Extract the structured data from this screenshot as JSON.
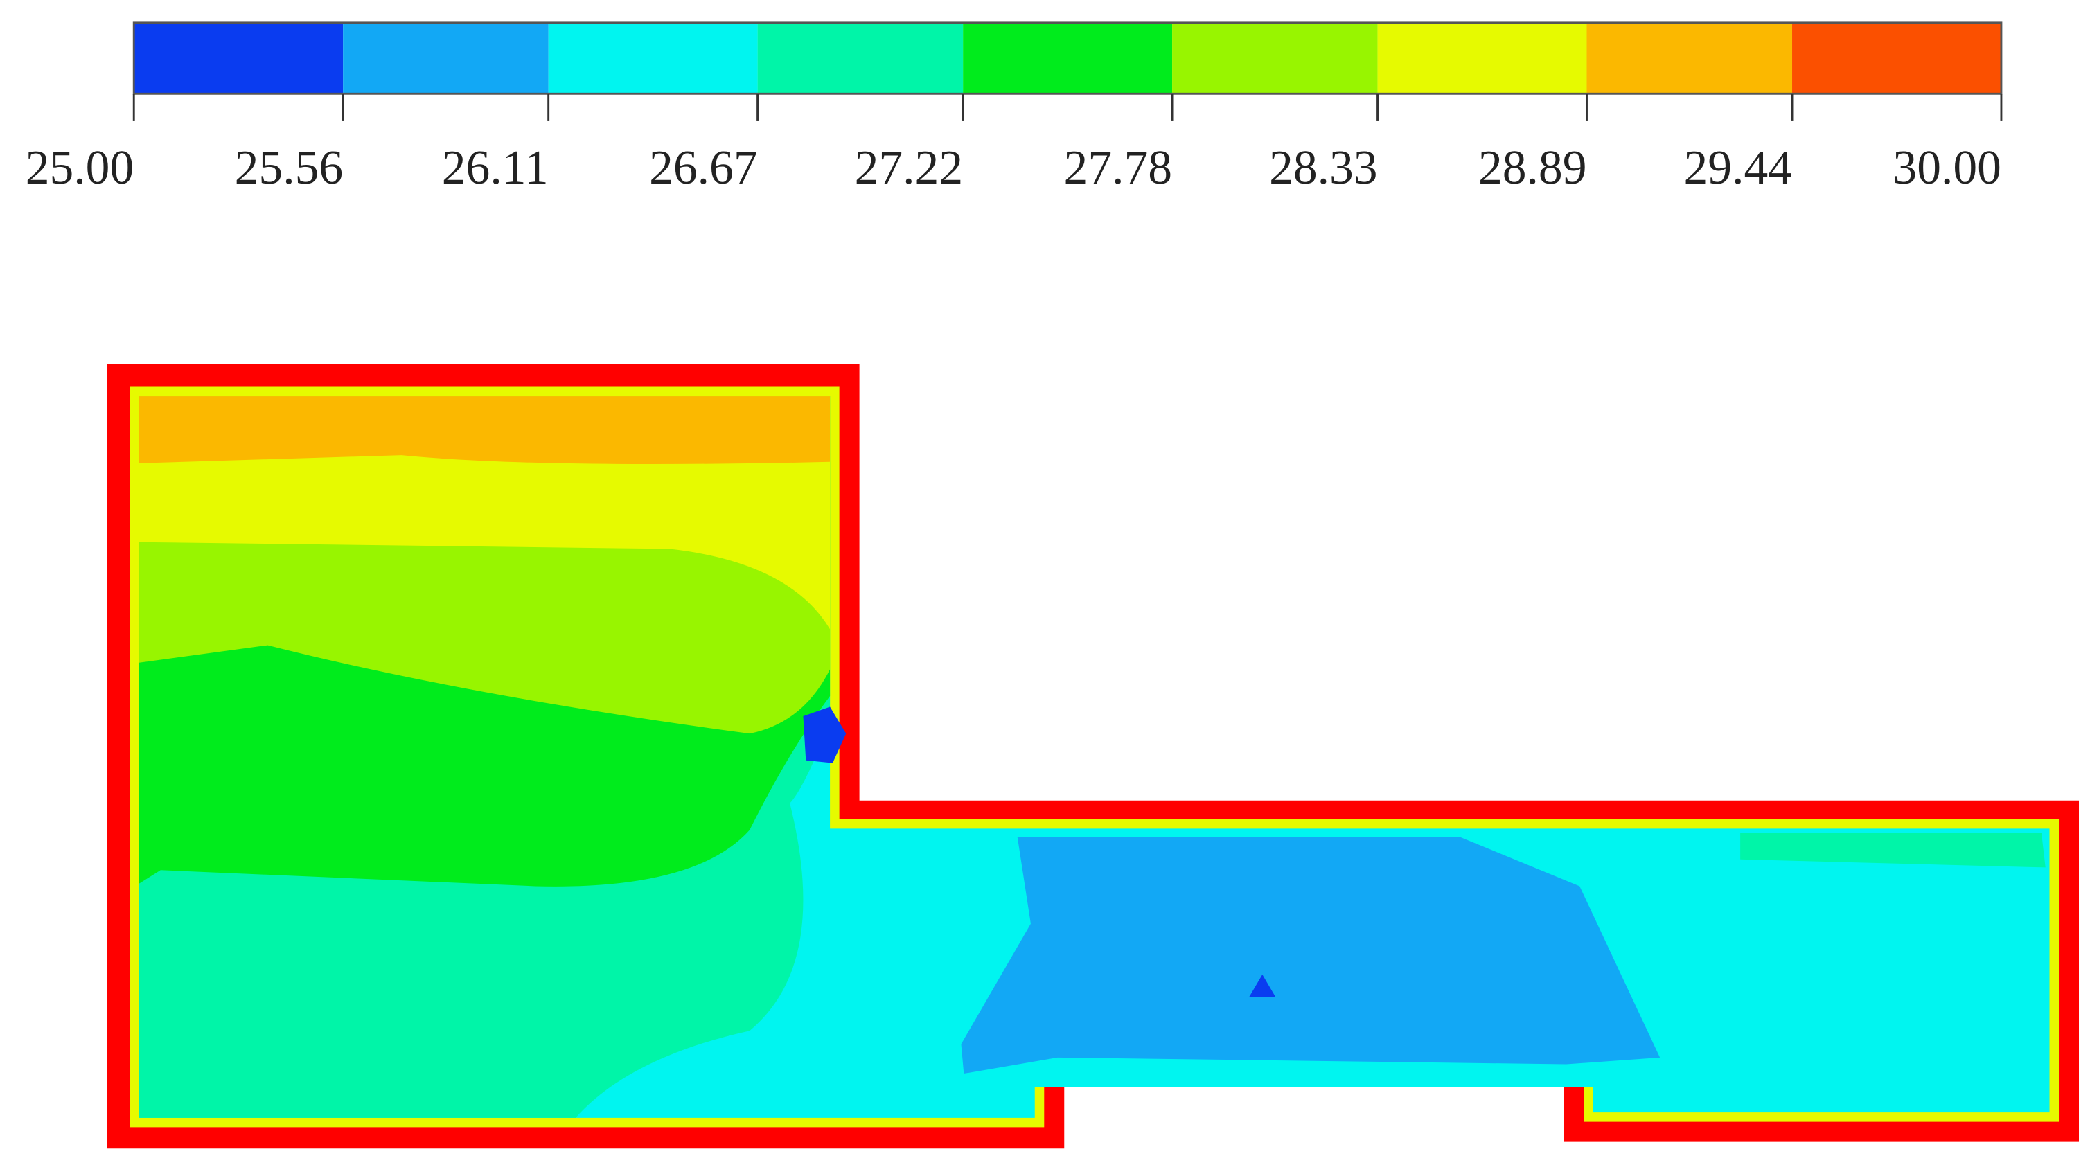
{
  "chart_data": {
    "type": "contour",
    "colors": [
      "#0a3cf0",
      "#12a8f5",
      "#00f5f0",
      "#00f5a8",
      "#00ec1c",
      "#98f500",
      "#e6fa00",
      "#fbb800",
      "#fb5000"
    ],
    "clim": [
      25,
      30
    ],
    "ticks": [
      {
        "value": 25,
        "label": "25.00"
      },
      {
        "value": 25.56,
        "label": "25.56"
      },
      {
        "value": 26.11,
        "label": "26.11"
      },
      {
        "value": 26.67,
        "label": "26.67"
      },
      {
        "value": 27.22,
        "label": "27.22"
      },
      {
        "value": 27.78,
        "label": "27.78"
      },
      {
        "value": 28.33,
        "label": "28.33"
      },
      {
        "value": 28.89,
        "label": "28.89"
      },
      {
        "value": 29.44,
        "label": "29.44"
      },
      {
        "value": 30,
        "label": "30.00"
      }
    ]
  }
}
